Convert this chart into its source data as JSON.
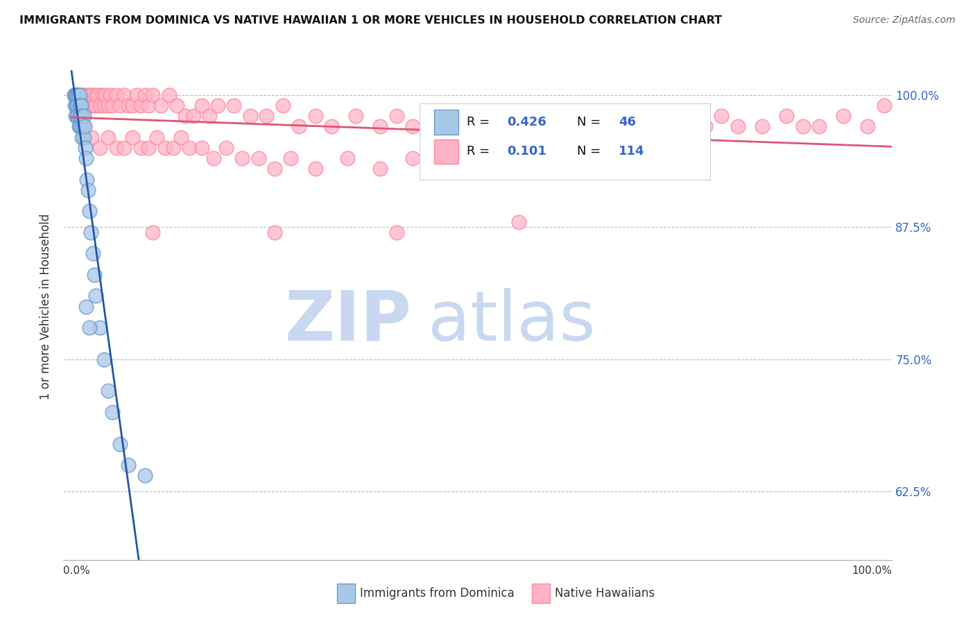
{
  "title": "IMMIGRANTS FROM DOMINICA VS NATIVE HAWAIIAN 1 OR MORE VEHICLES IN HOUSEHOLD CORRELATION CHART",
  "source": "Source: ZipAtlas.com",
  "ylabel": "1 or more Vehicles in Household",
  "yticks": [
    0.625,
    0.75,
    0.875,
    1.0
  ],
  "ytick_labels": [
    "62.5%",
    "75.0%",
    "87.5%",
    "100.0%"
  ],
  "xlim": [
    0.0,
    1.0
  ],
  "ylim": [
    0.56,
    1.04
  ],
  "legend_r1": "0.426",
  "legend_n1": "46",
  "legend_r2": "0.101",
  "legend_n2": "114",
  "legend_label1": "Immigrants from Dominica",
  "legend_label2": "Native Hawaiians",
  "blue_face_color": "#A8C8E8",
  "blue_edge_color": "#6699CC",
  "pink_face_color": "#FFB3C8",
  "pink_edge_color": "#FF8899",
  "blue_line_color": "#2255AA",
  "pink_line_color": "#DD5577",
  "rn_text_color": "#3366CC",
  "watermark_zip_color": "#C8D8F0",
  "watermark_atlas_color": "#C8D8F0",
  "blue_x": [
    0.003,
    0.004,
    0.005,
    0.005,
    0.006,
    0.006,
    0.007,
    0.007,
    0.007,
    0.008,
    0.008,
    0.008,
    0.009,
    0.009,
    0.01,
    0.01,
    0.01,
    0.01,
    0.011,
    0.011,
    0.012,
    0.012,
    0.013,
    0.013,
    0.014,
    0.015,
    0.015,
    0.016,
    0.017,
    0.018,
    0.019,
    0.02,
    0.022,
    0.024,
    0.026,
    0.028,
    0.03,
    0.035,
    0.04,
    0.045,
    0.05,
    0.06,
    0.07,
    0.09,
    0.018,
    0.022
  ],
  "blue_y": [
    1.0,
    0.99,
    1.0,
    0.98,
    1.0,
    0.99,
    1.0,
    0.99,
    0.98,
    1.0,
    0.99,
    0.98,
    1.0,
    0.97,
    1.0,
    0.99,
    0.98,
    0.97,
    0.99,
    0.98,
    0.99,
    0.97,
    0.98,
    0.96,
    0.97,
    0.98,
    0.96,
    0.97,
    0.95,
    0.94,
    0.92,
    0.91,
    0.89,
    0.87,
    0.85,
    0.83,
    0.81,
    0.78,
    0.75,
    0.72,
    0.7,
    0.67,
    0.65,
    0.64,
    0.8,
    0.78
  ],
  "pink_x": [
    0.003,
    0.005,
    0.007,
    0.008,
    0.01,
    0.01,
    0.012,
    0.013,
    0.015,
    0.015,
    0.017,
    0.018,
    0.02,
    0.02,
    0.022,
    0.024,
    0.025,
    0.027,
    0.03,
    0.03,
    0.032,
    0.035,
    0.038,
    0.04,
    0.042,
    0.045,
    0.048,
    0.05,
    0.055,
    0.06,
    0.065,
    0.07,
    0.075,
    0.08,
    0.085,
    0.09,
    0.095,
    0.1,
    0.11,
    0.12,
    0.13,
    0.14,
    0.15,
    0.16,
    0.17,
    0.18,
    0.2,
    0.22,
    0.24,
    0.26,
    0.28,
    0.3,
    0.32,
    0.35,
    0.38,
    0.4,
    0.42,
    0.45,
    0.48,
    0.5,
    0.52,
    0.55,
    0.58,
    0.6,
    0.62,
    0.65,
    0.68,
    0.7,
    0.72,
    0.75,
    0.78,
    0.8,
    0.82,
    0.85,
    0.88,
    0.9,
    0.92,
    0.95,
    0.98,
    1.0,
    0.025,
    0.035,
    0.045,
    0.055,
    0.065,
    0.075,
    0.085,
    0.095,
    0.105,
    0.115,
    0.125,
    0.135,
    0.145,
    0.16,
    0.175,
    0.19,
    0.21,
    0.23,
    0.25,
    0.27,
    0.3,
    0.34,
    0.38,
    0.42,
    0.46,
    0.5,
    0.55,
    0.6,
    0.65,
    0.7,
    0.55,
    0.4,
    0.25,
    0.1
  ],
  "pink_y": [
    1.0,
    1.0,
    1.0,
    1.0,
    1.0,
    0.99,
    1.0,
    0.99,
    1.0,
    0.99,
    1.0,
    0.99,
    1.0,
    0.99,
    1.0,
    0.99,
    1.0,
    0.99,
    1.0,
    0.99,
    1.0,
    0.99,
    1.0,
    0.99,
    1.0,
    0.99,
    1.0,
    0.99,
    1.0,
    0.99,
    1.0,
    0.99,
    0.99,
    1.0,
    0.99,
    1.0,
    0.99,
    1.0,
    0.99,
    1.0,
    0.99,
    0.98,
    0.98,
    0.99,
    0.98,
    0.99,
    0.99,
    0.98,
    0.98,
    0.99,
    0.97,
    0.98,
    0.97,
    0.98,
    0.97,
    0.98,
    0.97,
    0.97,
    0.98,
    0.97,
    0.97,
    0.98,
    0.97,
    0.98,
    0.97,
    0.97,
    0.98,
    0.97,
    0.98,
    0.97,
    0.97,
    0.98,
    0.97,
    0.97,
    0.98,
    0.97,
    0.97,
    0.98,
    0.97,
    0.99,
    0.96,
    0.95,
    0.96,
    0.95,
    0.95,
    0.96,
    0.95,
    0.95,
    0.96,
    0.95,
    0.95,
    0.96,
    0.95,
    0.95,
    0.94,
    0.95,
    0.94,
    0.94,
    0.93,
    0.94,
    0.93,
    0.94,
    0.93,
    0.94,
    0.93,
    0.94,
    0.93,
    0.93,
    0.94,
    0.93,
    0.88,
    0.87,
    0.87,
    0.87
  ]
}
